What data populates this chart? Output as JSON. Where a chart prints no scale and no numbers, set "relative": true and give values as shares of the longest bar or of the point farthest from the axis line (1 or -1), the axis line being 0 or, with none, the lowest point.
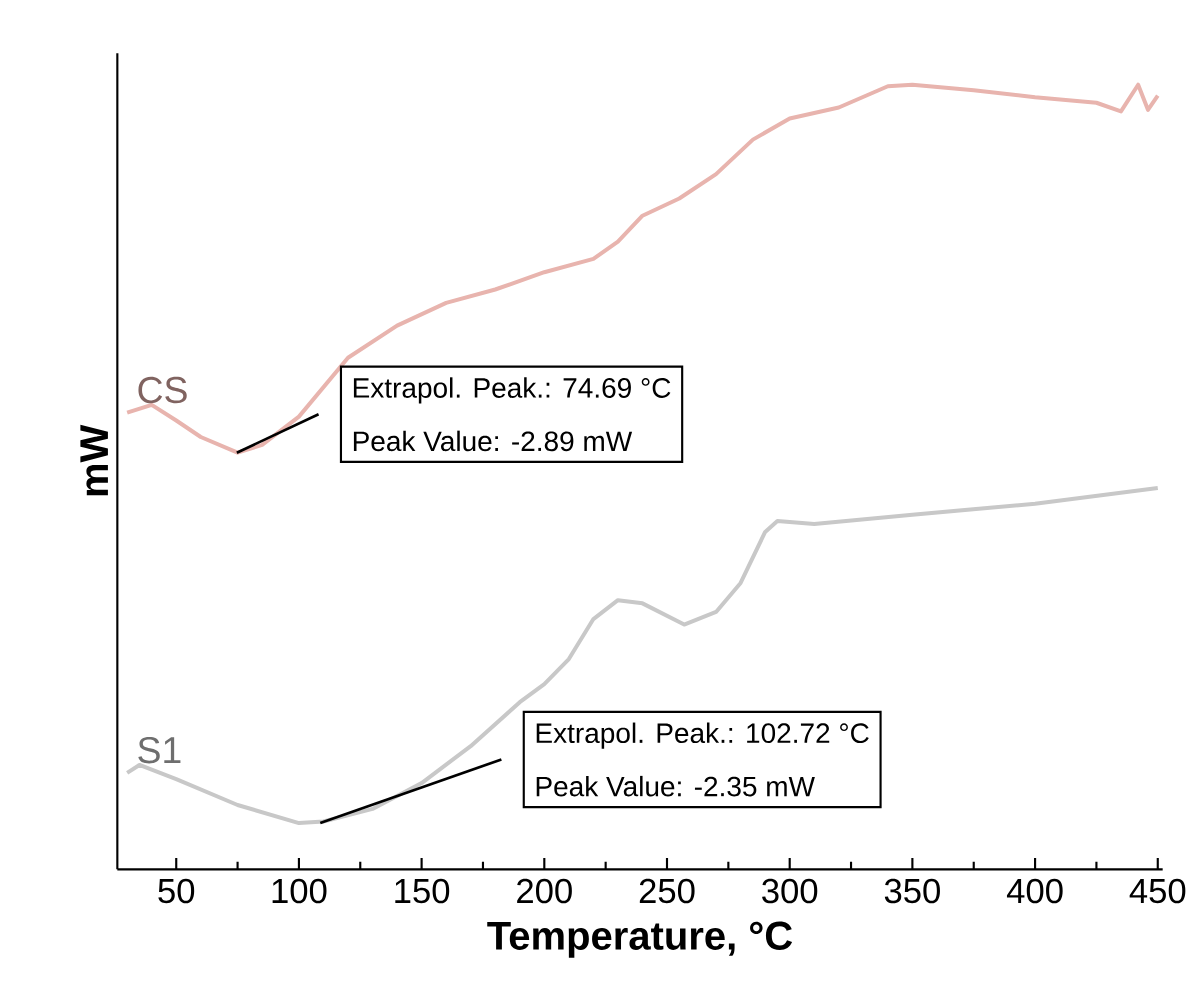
{
  "chart_data": {
    "type": "line",
    "relative": true,
    "xlabel": "Temperature, °C",
    "ylabel": "mW",
    "xlim": [
      26,
      452
    ],
    "xticks": [
      50,
      100,
      150,
      200,
      250,
      300,
      350,
      400,
      450
    ],
    "tick_labels": "x",
    "grid": false,
    "marker": "none",
    "line_style": "solid",
    "series": [
      {
        "name": "CS",
        "color": "#e8b4ae",
        "x": [
          30,
          40,
          50,
          60,
          75,
          85,
          100,
          120,
          140,
          160,
          180,
          200,
          220,
          230,
          240,
          255,
          270,
          285,
          300,
          320,
          340,
          350,
          375,
          400,
          425,
          435,
          442,
          446,
          450
        ],
        "values": [
          0.582,
          0.592,
          0.572,
          0.551,
          0.531,
          0.541,
          0.577,
          0.652,
          0.693,
          0.722,
          0.739,
          0.761,
          0.778,
          0.8,
          0.833,
          0.855,
          0.886,
          0.93,
          0.957,
          0.971,
          0.998,
          1.0,
          0.993,
          0.984,
          0.977,
          0.966,
          1.0,
          0.968,
          0.986
        ]
      },
      {
        "name": "S1",
        "color": "#c8c8c8",
        "x": [
          30,
          35,
          50,
          75,
          100,
          110,
          130,
          150,
          170,
          190,
          200,
          210,
          220,
          230,
          240,
          257,
          270,
          280,
          290,
          295,
          310,
          350,
          400,
          450
        ],
        "values": [
          0.123,
          0.133,
          0.115,
          0.082,
          0.059,
          0.061,
          0.077,
          0.11,
          0.157,
          0.213,
          0.236,
          0.268,
          0.319,
          0.343,
          0.339,
          0.312,
          0.328,
          0.365,
          0.43,
          0.444,
          0.44,
          0.452,
          0.466,
          0.486
        ]
      },
      {
        "type": "line",
        "color": "#000000",
        "x": [
          74.69,
          108
        ],
        "values": [
          0.531,
          0.58
        ]
      },
      {
        "type": "line",
        "color": "#000000",
        "x": [
          108.7,
          182.5
        ],
        "values": [
          0.059,
          0.14
        ]
      }
    ],
    "annotations": [
      "Extrapol. Peak.: 74.69 °C",
      "Peak Value: -2.89 mW",
      "Extrapol. Peak.: 102.72 °C",
      "Peak Value: -2.35 mW"
    ]
  }
}
